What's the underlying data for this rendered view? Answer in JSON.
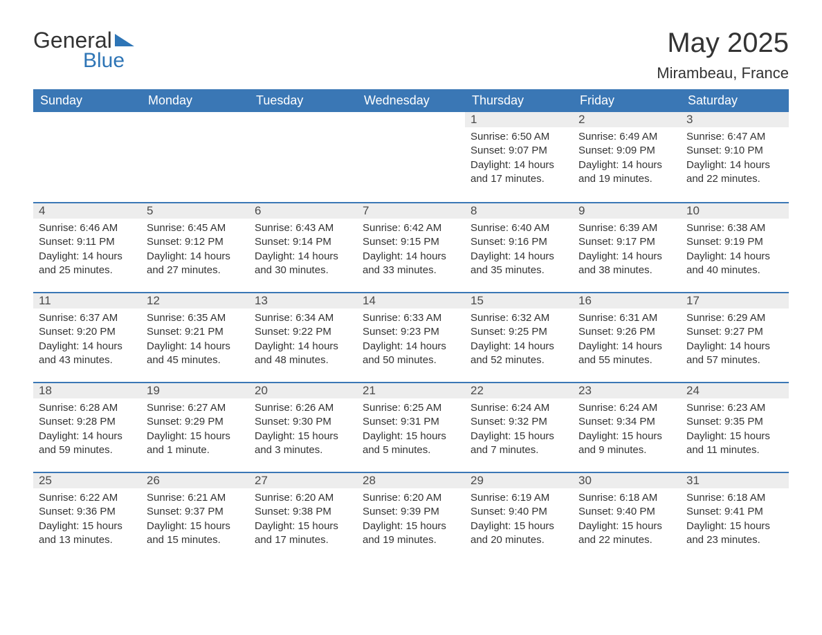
{
  "logo": {
    "text_general": "General",
    "text_blue": "Blue"
  },
  "title": "May 2025",
  "location": "Mirambeau, France",
  "colors": {
    "header_bg": "#3a77b5",
    "header_text": "#ffffff",
    "daynum_bg": "#ededed",
    "border_top": "#3a77b5",
    "body_text": "#333333",
    "logo_blue": "#2e75b6"
  },
  "weekdays": [
    "Sunday",
    "Monday",
    "Tuesday",
    "Wednesday",
    "Thursday",
    "Friday",
    "Saturday"
  ],
  "weeks": [
    [
      null,
      null,
      null,
      null,
      {
        "n": "1",
        "sunrise": "6:50 AM",
        "sunset": "9:07 PM",
        "daylight": "14 hours and 17 minutes."
      },
      {
        "n": "2",
        "sunrise": "6:49 AM",
        "sunset": "9:09 PM",
        "daylight": "14 hours and 19 minutes."
      },
      {
        "n": "3",
        "sunrise": "6:47 AM",
        "sunset": "9:10 PM",
        "daylight": "14 hours and 22 minutes."
      }
    ],
    [
      {
        "n": "4",
        "sunrise": "6:46 AM",
        "sunset": "9:11 PM",
        "daylight": "14 hours and 25 minutes."
      },
      {
        "n": "5",
        "sunrise": "6:45 AM",
        "sunset": "9:12 PM",
        "daylight": "14 hours and 27 minutes."
      },
      {
        "n": "6",
        "sunrise": "6:43 AM",
        "sunset": "9:14 PM",
        "daylight": "14 hours and 30 minutes."
      },
      {
        "n": "7",
        "sunrise": "6:42 AM",
        "sunset": "9:15 PM",
        "daylight": "14 hours and 33 minutes."
      },
      {
        "n": "8",
        "sunrise": "6:40 AM",
        "sunset": "9:16 PM",
        "daylight": "14 hours and 35 minutes."
      },
      {
        "n": "9",
        "sunrise": "6:39 AM",
        "sunset": "9:17 PM",
        "daylight": "14 hours and 38 minutes."
      },
      {
        "n": "10",
        "sunrise": "6:38 AM",
        "sunset": "9:19 PM",
        "daylight": "14 hours and 40 minutes."
      }
    ],
    [
      {
        "n": "11",
        "sunrise": "6:37 AM",
        "sunset": "9:20 PM",
        "daylight": "14 hours and 43 minutes."
      },
      {
        "n": "12",
        "sunrise": "6:35 AM",
        "sunset": "9:21 PM",
        "daylight": "14 hours and 45 minutes."
      },
      {
        "n": "13",
        "sunrise": "6:34 AM",
        "sunset": "9:22 PM",
        "daylight": "14 hours and 48 minutes."
      },
      {
        "n": "14",
        "sunrise": "6:33 AM",
        "sunset": "9:23 PM",
        "daylight": "14 hours and 50 minutes."
      },
      {
        "n": "15",
        "sunrise": "6:32 AM",
        "sunset": "9:25 PM",
        "daylight": "14 hours and 52 minutes."
      },
      {
        "n": "16",
        "sunrise": "6:31 AM",
        "sunset": "9:26 PM",
        "daylight": "14 hours and 55 minutes."
      },
      {
        "n": "17",
        "sunrise": "6:29 AM",
        "sunset": "9:27 PM",
        "daylight": "14 hours and 57 minutes."
      }
    ],
    [
      {
        "n": "18",
        "sunrise": "6:28 AM",
        "sunset": "9:28 PM",
        "daylight": "14 hours and 59 minutes."
      },
      {
        "n": "19",
        "sunrise": "6:27 AM",
        "sunset": "9:29 PM",
        "daylight": "15 hours and 1 minute."
      },
      {
        "n": "20",
        "sunrise": "6:26 AM",
        "sunset": "9:30 PM",
        "daylight": "15 hours and 3 minutes."
      },
      {
        "n": "21",
        "sunrise": "6:25 AM",
        "sunset": "9:31 PM",
        "daylight": "15 hours and 5 minutes."
      },
      {
        "n": "22",
        "sunrise": "6:24 AM",
        "sunset": "9:32 PM",
        "daylight": "15 hours and 7 minutes."
      },
      {
        "n": "23",
        "sunrise": "6:24 AM",
        "sunset": "9:34 PM",
        "daylight": "15 hours and 9 minutes."
      },
      {
        "n": "24",
        "sunrise": "6:23 AM",
        "sunset": "9:35 PM",
        "daylight": "15 hours and 11 minutes."
      }
    ],
    [
      {
        "n": "25",
        "sunrise": "6:22 AM",
        "sunset": "9:36 PM",
        "daylight": "15 hours and 13 minutes."
      },
      {
        "n": "26",
        "sunrise": "6:21 AM",
        "sunset": "9:37 PM",
        "daylight": "15 hours and 15 minutes."
      },
      {
        "n": "27",
        "sunrise": "6:20 AM",
        "sunset": "9:38 PM",
        "daylight": "15 hours and 17 minutes."
      },
      {
        "n": "28",
        "sunrise": "6:20 AM",
        "sunset": "9:39 PM",
        "daylight": "15 hours and 19 minutes."
      },
      {
        "n": "29",
        "sunrise": "6:19 AM",
        "sunset": "9:40 PM",
        "daylight": "15 hours and 20 minutes."
      },
      {
        "n": "30",
        "sunrise": "6:18 AM",
        "sunset": "9:40 PM",
        "daylight": "15 hours and 22 minutes."
      },
      {
        "n": "31",
        "sunrise": "6:18 AM",
        "sunset": "9:41 PM",
        "daylight": "15 hours and 23 minutes."
      }
    ]
  ],
  "labels": {
    "sunrise": "Sunrise: ",
    "sunset": "Sunset: ",
    "daylight": "Daylight: "
  }
}
